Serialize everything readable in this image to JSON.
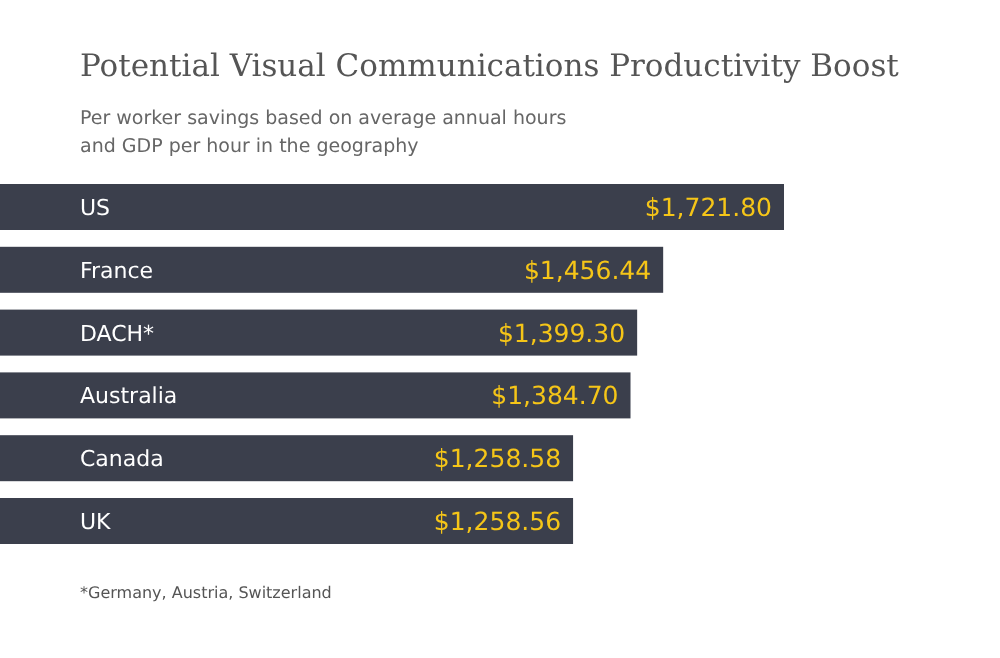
{
  "chart_data": {
    "type": "bar",
    "orientation": "horizontal",
    "title": "Potential Visual Communications Productivity Boost",
    "subtitle": "Per worker savings based on average annual hours\nand GDP per hour in the geography",
    "categories": [
      "US",
      "France",
      "DACH*",
      "Australia",
      "Canada",
      "UK"
    ],
    "values": [
      1721.8,
      1456.44,
      1399.3,
      1384.7,
      1258.58,
      1258.56
    ],
    "value_labels": [
      "$1,721.80",
      "$1,456.44",
      "$1,399.30",
      "$1,384.70",
      "$1,258.58",
      "$1,258.56"
    ],
    "color": "#3b3f4c",
    "annotations": [
      "*Germany, Austria, Switzerland"
    ]
  }
}
